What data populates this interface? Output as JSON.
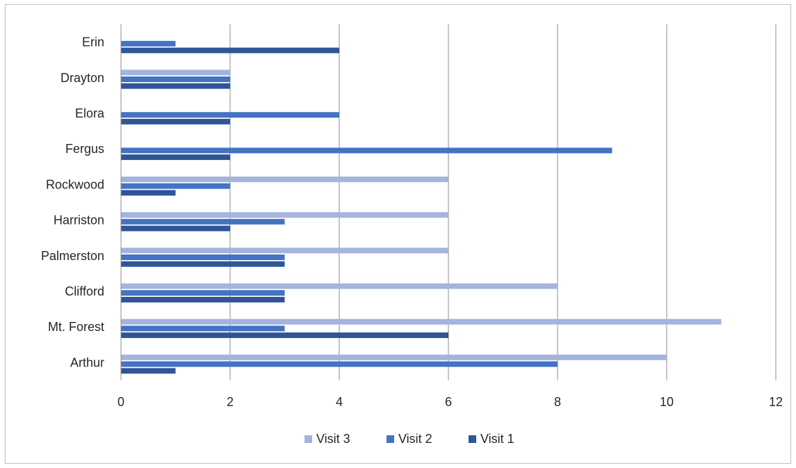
{
  "chart_data": {
    "type": "bar",
    "orientation": "horizontal",
    "categories": [
      "Arthur",
      "Mt. Forest",
      "Clifford",
      "Palmerston",
      "Harriston",
      "Rockwood",
      "Fergus",
      "Elora",
      "Drayton",
      "Erin"
    ],
    "series": [
      {
        "name": "Visit 1",
        "color": "#2f5597",
        "values": [
          1,
          6,
          3,
          3,
          2,
          1,
          2,
          2,
          2,
          4
        ]
      },
      {
        "name": "Visit 2",
        "color": "#4472c4",
        "values": [
          8,
          3,
          3,
          3,
          3,
          2,
          9,
          4,
          2,
          1
        ]
      },
      {
        "name": "Visit 3",
        "color": "#a5b4de",
        "values": [
          10,
          11,
          8,
          6,
          6,
          6,
          null,
          null,
          2,
          null
        ]
      }
    ],
    "xlim": [
      0,
      12
    ],
    "x_ticks": [
      "0",
      "2",
      "4",
      "6",
      "8",
      "10",
      "12"
    ],
    "grid": "vertical",
    "legend_position": "bottom",
    "legend_order": [
      "Visit 3",
      "Visit 2",
      "Visit 1"
    ],
    "title": "",
    "xlabel": "",
    "ylabel": ""
  }
}
